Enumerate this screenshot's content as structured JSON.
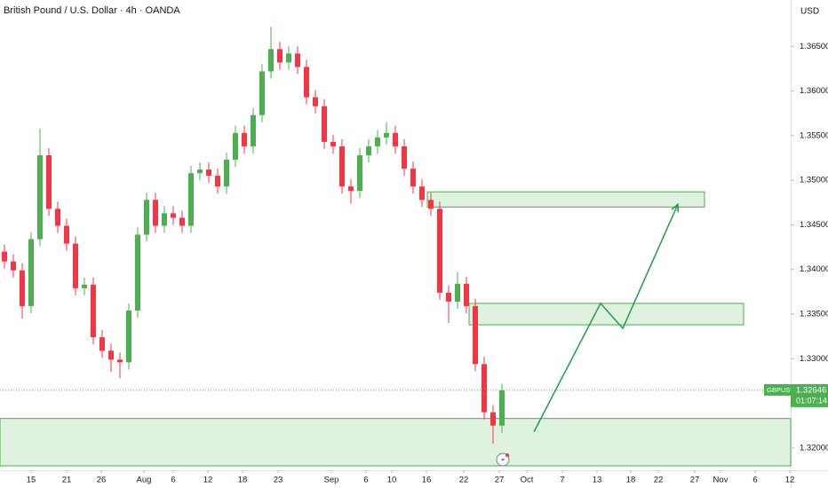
{
  "chart_data": {
    "type": "candlestick",
    "title": "British Pound / U.S. Dollar · 4h · OANDA",
    "currency": "USD",
    "symbol": "GBPUSD",
    "countdown": "01:07:14",
    "up_color": "#4caf50",
    "down_color": "#f23645",
    "x": [
      0.5,
      1.5,
      2.5,
      3.5,
      4.5,
      5.5,
      6.5,
      7.5,
      8.5,
      9.5,
      10.5,
      11.5,
      12.5,
      13.5,
      14.5,
      15.5,
      16.5,
      17.5,
      18.5,
      19.5,
      20.5,
      21.5,
      22.5,
      23.5,
      24.5,
      25.5,
      26.5,
      27.5,
      28.5,
      29.5,
      30.5,
      31.5,
      32.5,
      33.5,
      34.5,
      35.5,
      36.5,
      37.5,
      38.5,
      39.5,
      40.5,
      41.5,
      42.5,
      43.5,
      44.5,
      45.5,
      46.5,
      47.5,
      48.5,
      49.5,
      50.5,
      51.5,
      52.5,
      53.5,
      54.5,
      55.5,
      56.5
    ],
    "open": [
      1.342,
      1.3409,
      1.3399,
      1.3359,
      1.3434,
      1.3528,
      1.3468,
      1.3449,
      1.3429,
      1.3379,
      1.3383,
      1.3324,
      1.3309,
      1.3299,
      1.3296,
      1.3354,
      1.3439,
      1.3478,
      1.3449,
      1.3463,
      1.3458,
      1.3449,
      1.3508,
      1.3512,
      1.3505,
      1.3493,
      1.3523,
      1.3553,
      1.3538,
      1.3573,
      1.3622,
      1.3647,
      1.3632,
      1.3642,
      1.3627,
      1.3593,
      1.3583,
      1.3543,
      1.3538,
      1.3493,
      1.3488,
      1.3528,
      1.3538,
      1.3548,
      1.3553,
      1.3538,
      1.3513,
      1.3493,
      1.3478,
      1.3468,
      1.3374,
      1.3364,
      1.3384,
      1.3359,
      1.3294,
      1.324,
      1.3225
    ],
    "high": [
      1.3428,
      1.3417,
      1.3407,
      1.3442,
      1.3558,
      1.3536,
      1.3476,
      1.3457,
      1.3437,
      1.3391,
      1.3391,
      1.3332,
      1.3317,
      1.3307,
      1.3362,
      1.3447,
      1.3486,
      1.3486,
      1.3471,
      1.3471,
      1.3466,
      1.3516,
      1.352,
      1.352,
      1.3513,
      1.3531,
      1.3561,
      1.3561,
      1.3581,
      1.363,
      1.3672,
      1.3655,
      1.365,
      1.365,
      1.3635,
      1.3601,
      1.3591,
      1.3551,
      1.3546,
      1.3501,
      1.3536,
      1.3546,
      1.3556,
      1.3565,
      1.3561,
      1.3546,
      1.3521,
      1.3501,
      1.3486,
      1.3476,
      1.3382,
      1.3397,
      1.3392,
      1.3367,
      1.3302,
      1.3248,
      1.3272
    ],
    "low": [
      1.3401,
      1.3391,
      1.3345,
      1.3351,
      1.3426,
      1.346,
      1.3441,
      1.3421,
      1.3371,
      1.3371,
      1.3316,
      1.3301,
      1.3285,
      1.3278,
      1.3288,
      1.3346,
      1.3431,
      1.3441,
      1.3441,
      1.345,
      1.3441,
      1.3441,
      1.35,
      1.3497,
      1.3485,
      1.3485,
      1.3515,
      1.353,
      1.353,
      1.3565,
      1.3614,
      1.3624,
      1.3624,
      1.3619,
      1.3585,
      1.3575,
      1.3535,
      1.353,
      1.3485,
      1.3474,
      1.348,
      1.352,
      1.353,
      1.354,
      1.353,
      1.3505,
      1.3485,
      1.347,
      1.346,
      1.3366,
      1.334,
      1.3356,
      1.3351,
      1.3286,
      1.3232,
      1.3205,
      1.3217
    ],
    "close": [
      1.3409,
      1.3399,
      1.3359,
      1.3434,
      1.3528,
      1.3468,
      1.3449,
      1.3429,
      1.3379,
      1.3383,
      1.3324,
      1.3309,
      1.3299,
      1.3296,
      1.3354,
      1.3439,
      1.3478,
      1.3449,
      1.3463,
      1.3458,
      1.3449,
      1.3508,
      1.3512,
      1.3505,
      1.3493,
      1.3523,
      1.3553,
      1.3538,
      1.3573,
      1.3622,
      1.3647,
      1.3632,
      1.3642,
      1.3627,
      1.3593,
      1.3583,
      1.3543,
      1.3538,
      1.3493,
      1.3488,
      1.3528,
      1.3538,
      1.3548,
      1.3553,
      1.3538,
      1.3513,
      1.3493,
      1.3478,
      1.3468,
      1.3374,
      1.3364,
      1.3384,
      1.3359,
      1.3294,
      1.324,
      1.3225,
      1.32646
    ],
    "xlim": [
      0,
      89
    ],
    "xticks": [
      {
        "value": 3.5,
        "label": "15"
      },
      {
        "value": 7.5,
        "label": "21"
      },
      {
        "value": 11.4,
        "label": "26"
      },
      {
        "value": 16.2,
        "label": "Aug"
      },
      {
        "value": 19.5,
        "label": "6"
      },
      {
        "value": 23.4,
        "label": "12"
      },
      {
        "value": 27.3,
        "label": "18"
      },
      {
        "value": 31.3,
        "label": "23"
      },
      {
        "value": 37.3,
        "label": "Sep"
      },
      {
        "value": 41.2,
        "label": "6"
      },
      {
        "value": 44.1,
        "label": "10"
      },
      {
        "value": 48,
        "label": "16"
      },
      {
        "value": 52.2,
        "label": "22"
      },
      {
        "value": 56.2,
        "label": "27"
      },
      {
        "value": 59.3,
        "label": "Oct"
      },
      {
        "value": 63.3,
        "label": "7"
      },
      {
        "value": 67.2,
        "label": "13"
      },
      {
        "value": 71,
        "label": "18"
      },
      {
        "value": 74.1,
        "label": "22"
      },
      {
        "value": 78.2,
        "label": "27"
      },
      {
        "value": 81.1,
        "label": "Nov"
      },
      {
        "value": 85,
        "label": "6"
      },
      {
        "value": 88.9,
        "label": "12"
      }
    ],
    "ylim": [
      1.3175,
      1.3702
    ],
    "yticks": [
      {
        "value": 1.32,
        "label": "1.32000"
      },
      {
        "value": 1.325,
        "label": "1.32500"
      },
      {
        "value": 1.33,
        "label": "1.33000"
      },
      {
        "value": 1.335,
        "label": "1.33500"
      },
      {
        "value": 1.34,
        "label": "1.34000"
      },
      {
        "value": 1.345,
        "label": "1.34500"
      },
      {
        "value": 1.35,
        "label": "1.35000"
      },
      {
        "value": 1.355,
        "label": "1.35500"
      },
      {
        "value": 1.36,
        "label": "1.36000"
      },
      {
        "value": 1.365,
        "label": "1.36500"
      }
    ],
    "zones": [
      {
        "x0": 48.1,
        "x1": 79.3,
        "top": 1.3487,
        "bottom": 1.347
      },
      {
        "x0": 52.8,
        "x1": 83.7,
        "top": 1.3362,
        "bottom": 1.3338
      },
      {
        "x0": 0,
        "x1": 89,
        "top": 1.3233,
        "bottom": 1.318
      }
    ],
    "arrow": {
      "x": [
        60.1,
        67.6,
        70.1,
        76.3
      ],
      "y": [
        1.3218,
        1.3362,
        1.3334,
        1.3473
      ],
      "color": "#1e9e4a"
    }
  }
}
